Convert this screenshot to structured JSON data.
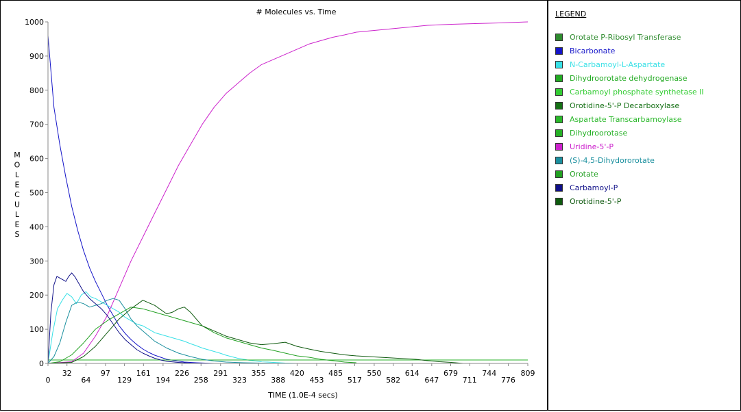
{
  "chart_data": {
    "type": "line",
    "title": "# Molecules vs. Time",
    "xlabel": "TIME (1.0E-4 secs)",
    "ylabel": "MOLECULES",
    "xlim": [
      0,
      809
    ],
    "ylim": [
      0,
      1000
    ],
    "x_ticks": [
      0,
      32,
      64,
      97,
      129,
      161,
      194,
      226,
      258,
      291,
      323,
      355,
      388,
      420,
      453,
      485,
      517,
      550,
      582,
      614,
      647,
      679,
      711,
      744,
      776,
      809
    ],
    "y_ticks": [
      0,
      100,
      200,
      300,
      400,
      500,
      600,
      700,
      800,
      900,
      1000
    ],
    "grid": false,
    "legend_title": "LEGEND",
    "legend_position": "right",
    "series": [
      {
        "name": "Orotate P-Ribosyl Transferase",
        "color": "#2e8b2e",
        "x": [
          0,
          809
        ],
        "y": [
          10,
          10
        ]
      },
      {
        "name": "Bicarbonate",
        "color": "#1414c8",
        "x": [
          0,
          10,
          20,
          30,
          40,
          50,
          60,
          70,
          80,
          90,
          100,
          110,
          120,
          130,
          140,
          150,
          160,
          170,
          180,
          190,
          200,
          215,
          230,
          250,
          280,
          300
        ],
        "y": [
          960,
          750,
          640,
          545,
          460,
          390,
          330,
          280,
          240,
          205,
          170,
          140,
          110,
          88,
          70,
          55,
          42,
          32,
          24,
          18,
          12,
          8,
          4,
          2,
          0,
          0
        ]
      },
      {
        "name": "N-Carbamoyl-L-Aspartate",
        "color": "#38e0e6",
        "x": [
          0,
          8,
          16,
          24,
          32,
          40,
          48,
          56,
          64,
          72,
          80,
          90,
          100,
          110,
          120,
          130,
          140,
          150,
          160,
          170,
          180,
          190,
          200,
          210,
          220,
          230,
          240,
          250,
          260,
          270,
          280,
          290,
          300,
          320,
          340,
          360,
          380,
          400,
          420
        ],
        "y": [
          0,
          90,
          160,
          185,
          205,
          195,
          175,
          200,
          210,
          195,
          190,
          180,
          170,
          160,
          150,
          135,
          125,
          115,
          110,
          100,
          90,
          85,
          80,
          75,
          70,
          65,
          58,
          52,
          45,
          40,
          35,
          30,
          24,
          15,
          9,
          5,
          3,
          1,
          0
        ]
      },
      {
        "name": "Dihydroorotate dehydrogenase",
        "color": "#22aa22",
        "x": [
          0,
          809
        ],
        "y": [
          10,
          10
        ]
      },
      {
        "name": "Carbamoyl phosphate synthetase II",
        "color": "#33cc33",
        "x": [
          0,
          809
        ],
        "y": [
          10,
          10
        ]
      },
      {
        "name": "Orotidine-5'-P Decarboxylase",
        "color": "#157015",
        "x": [
          0,
          809
        ],
        "y": [
          10,
          10
        ]
      },
      {
        "name": "Aspartate Transcarbamoylase",
        "color": "#2ab82a",
        "x": [
          0,
          809
        ],
        "y": [
          10,
          10
        ]
      },
      {
        "name": "Dihydroorotase",
        "color": "#26b026",
        "x": [
          0,
          809
        ],
        "y": [
          10,
          10
        ]
      },
      {
        "name": "Uridine-5'-P",
        "color": "#cc22cc",
        "x": [
          0,
          40,
          60,
          80,
          100,
          120,
          140,
          160,
          180,
          200,
          220,
          240,
          260,
          280,
          300,
          320,
          340,
          360,
          380,
          400,
          420,
          440,
          460,
          480,
          500,
          520,
          550,
          580,
          610,
          640,
          680,
          720,
          760,
          809
        ],
        "y": [
          0,
          5,
          30,
          80,
          140,
          220,
          300,
          370,
          440,
          510,
          580,
          640,
          700,
          750,
          790,
          820,
          850,
          875,
          890,
          905,
          920,
          935,
          945,
          955,
          962,
          970,
          975,
          980,
          985,
          990,
          993,
          995,
          997,
          1000
        ]
      },
      {
        "name": "(S)-4,5-Dihydororotate",
        "color": "#1a8f9e",
        "x": [
          0,
          10,
          20,
          30,
          40,
          50,
          60,
          70,
          80,
          90,
          100,
          110,
          120,
          130,
          140,
          150,
          160,
          170,
          180,
          200,
          220,
          240,
          260,
          280,
          300,
          330,
          360,
          400,
          440
        ],
        "y": [
          0,
          20,
          60,
          120,
          170,
          180,
          175,
          165,
          170,
          175,
          185,
          190,
          185,
          160,
          130,
          110,
          95,
          80,
          65,
          45,
          30,
          20,
          12,
          7,
          4,
          2,
          1,
          0,
          0
        ]
      },
      {
        "name": "Orotate",
        "color": "#22a022",
        "x": [
          0,
          20,
          40,
          60,
          80,
          100,
          120,
          140,
          160,
          180,
          200,
          220,
          240,
          260,
          280,
          300,
          320,
          340,
          360,
          380,
          400,
          420,
          440,
          460,
          480,
          500,
          520
        ],
        "y": [
          0,
          5,
          25,
          60,
          100,
          125,
          145,
          165,
          160,
          150,
          140,
          130,
          120,
          110,
          90,
          75,
          65,
          55,
          45,
          38,
          30,
          22,
          18,
          12,
          8,
          4,
          2
        ]
      },
      {
        "name": "Carbamoyl-P",
        "color": "#101088",
        "x": [
          0,
          5,
          10,
          15,
          20,
          25,
          30,
          35,
          40,
          45,
          50,
          55,
          60,
          70,
          80,
          90,
          100,
          110,
          120,
          130,
          140,
          150,
          160,
          170,
          180,
          190,
          200,
          220,
          240,
          260,
          280
        ],
        "y": [
          0,
          150,
          230,
          255,
          250,
          245,
          240,
          255,
          265,
          255,
          240,
          225,
          210,
          190,
          175,
          160,
          140,
          115,
          90,
          70,
          55,
          40,
          30,
          22,
          15,
          10,
          6,
          3,
          1,
          0,
          0
        ]
      },
      {
        "name": "Orotidine-5'-P",
        "color": "#0f5a0f",
        "x": [
          0,
          40,
          60,
          80,
          100,
          120,
          140,
          160,
          180,
          200,
          210,
          220,
          230,
          240,
          250,
          260,
          280,
          300,
          320,
          340,
          360,
          380,
          390,
          400,
          420,
          440,
          460,
          480,
          500,
          520,
          540,
          560,
          580,
          600,
          620,
          640,
          660,
          680,
          700
        ],
        "y": [
          0,
          3,
          20,
          50,
          90,
          130,
          160,
          185,
          170,
          145,
          150,
          160,
          165,
          150,
          130,
          110,
          95,
          80,
          70,
          60,
          55,
          58,
          60,
          62,
          50,
          42,
          35,
          30,
          25,
          22,
          20,
          18,
          16,
          14,
          12,
          8,
          5,
          3,
          0
        ]
      }
    ]
  }
}
